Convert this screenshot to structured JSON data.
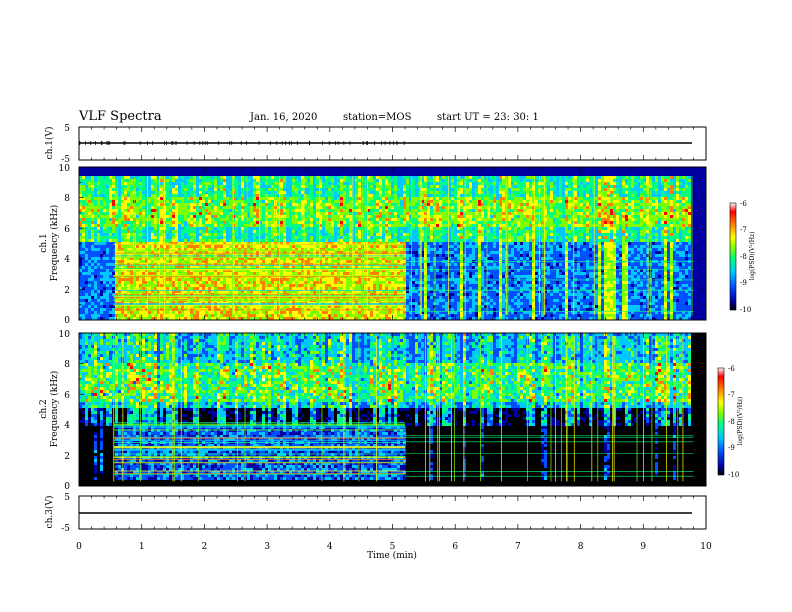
{
  "header": {
    "title": "VLF Spectra",
    "date": "Jan. 16, 2020",
    "station": "station=MOS",
    "start": "start  UT =   23: 30: 1"
  },
  "chart_data": [
    {
      "type": "line",
      "panel": "ch1-waveform",
      "ylabel": "ch.1(V)",
      "ylim": [
        -5,
        5
      ],
      "y_ticks": [
        "5",
        "-5"
      ],
      "baseline": 0
    },
    {
      "type": "heatmap",
      "panel": "ch1-spectrogram",
      "ylabel": "Frequency (kHz)",
      "channel_label": "ch.1",
      "ylim": [
        0,
        10
      ],
      "y_ticks": [
        "0",
        "2",
        "4",
        "6",
        "8",
        "10"
      ],
      "xlim": [
        0,
        10
      ],
      "colorbar": {
        "label": "log(PSD)(V²/Hz)",
        "range": [
          -10,
          -6
        ],
        "ticks": [
          "-6",
          "-7",
          "-8",
          "-9",
          "-10"
        ]
      },
      "data_end_min": 9.8,
      "interference_start_min": 0.55,
      "interference_end_min": 5.2
    },
    {
      "type": "heatmap",
      "panel": "ch2-spectrogram",
      "ylabel": "Frequency (kHz)",
      "channel_label": "ch.2",
      "ylim": [
        0,
        10
      ],
      "y_ticks": [
        "0",
        "2",
        "4",
        "6",
        "8",
        "10"
      ],
      "xlim": [
        0,
        10
      ],
      "colorbar": {
        "label": "log(PSD)(V²/Hz)",
        "range": [
          -10,
          -6
        ],
        "ticks": [
          "-6",
          "-7",
          "-8",
          "-9",
          "-10"
        ]
      },
      "data_end_min": 9.8,
      "interference_start_min": 0.55,
      "interference_end_min": 5.2
    },
    {
      "type": "line",
      "panel": "ch3-waveform",
      "ylabel": "ch.3(V)",
      "ylim": [
        -5,
        5
      ],
      "y_ticks": [
        "5",
        "-5"
      ],
      "baseline": 0
    }
  ],
  "x_axis": {
    "label": "Time (min)",
    "ticks": [
      "0",
      "1",
      "2",
      "3",
      "4",
      "5",
      "6",
      "7",
      "8",
      "9",
      "10"
    ]
  },
  "colors": {
    "colormap": [
      "#000000",
      "#0000a0",
      "#0050ff",
      "#00c8ff",
      "#00ff80",
      "#80ff00",
      "#ffff00",
      "#ff8000",
      "#ff0000",
      "#ffffff"
    ]
  }
}
